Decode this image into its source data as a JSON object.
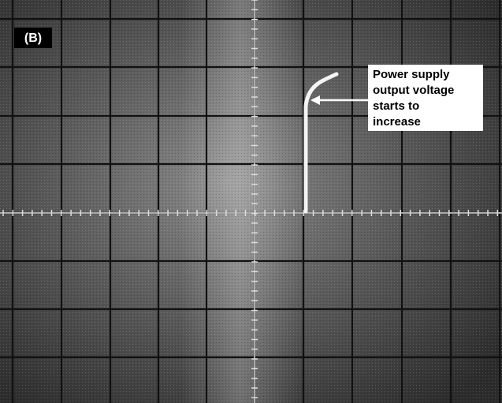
{
  "panel_label": "(B)",
  "annotation": {
    "lines": [
      "Power supply",
      "output voltage",
      "starts to",
      "increase"
    ]
  }
}
